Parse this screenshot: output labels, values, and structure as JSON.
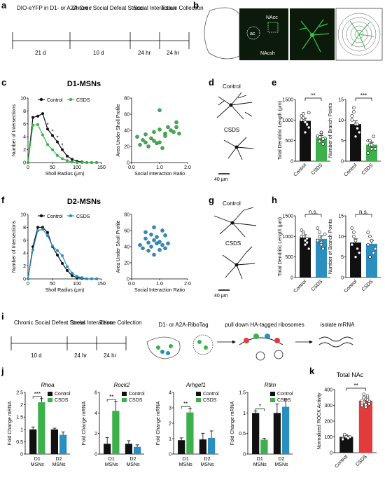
{
  "colors": {
    "control": "#111111",
    "d1": "#3cb04a",
    "d2": "#2a8fbf",
    "roc_control": "#111111",
    "roc_csds": "#e33b3b",
    "confocal_bg": "#0b1a0b",
    "neuron": "#3fc34a"
  },
  "panel_a": {
    "letter": "a",
    "steps": [
      "DIO-eYFP in D1- or A2A-Cre♂",
      "Chronic Social Defeat Stress",
      "Social Interaction",
      "Tissue Collection"
    ],
    "intervals": [
      "21 d",
      "10 d",
      "24 hr",
      "24 hr"
    ]
  },
  "panel_b": {
    "letter": "b",
    "labels": [
      "NAcc",
      "ac",
      "NAcsh"
    ]
  },
  "panel_c": {
    "letter": "c",
    "title": "D1-MSNs"
  },
  "panel_d": {
    "letter": "d",
    "labels": [
      "Control",
      "CSDS"
    ],
    "scale": "40 μm"
  },
  "panel_e": {
    "letter": "e"
  },
  "panel_f": {
    "letter": "f",
    "title": "D2-MSNs"
  },
  "panel_g": {
    "letter": "g",
    "labels": [
      "Control",
      "CSDS"
    ],
    "scale": "40 μm"
  },
  "panel_h": {
    "letter": "h"
  },
  "panel_i": {
    "letter": "i",
    "steps": [
      "Chronic Social Defeat Stress",
      "Social Interaction",
      "Tissue Collection"
    ],
    "intervals": [
      "10 d",
      "24 hr",
      "24 hr"
    ],
    "flow": [
      "D1- or A2A-RiboTag",
      "pull down HA-tagged ribosomes",
      "isolate mRNA"
    ]
  },
  "panel_j": {
    "letter": "j"
  },
  "panel_k": {
    "letter": "k",
    "title": "Total NAc"
  },
  "chart_data": [
    {
      "id": "c_sholl",
      "type": "line",
      "x": [
        0,
        10,
        20,
        30,
        40,
        50,
        60,
        70,
        80,
        90,
        100,
        110,
        120,
        130,
        140
      ],
      "series": [
        {
          "name": "Control",
          "values": [
            0,
            7,
            7.2,
            7.6,
            5.2,
            4.2,
            3.2,
            2,
            1,
            0.5,
            0.2,
            0.1,
            0,
            0,
            0
          ]
        },
        {
          "name": "CSDS",
          "values": [
            0,
            5.8,
            5.9,
            4.3,
            2.8,
            2,
            1.1,
            0.6,
            0.3,
            0.1,
            0,
            0,
            0,
            0,
            0
          ]
        }
      ],
      "legend": [
        "Control",
        "CSDS"
      ],
      "xlabel": "Sholl Radius (μm)",
      "ylabel": "Number of Intersections",
      "xlim": [
        0,
        150
      ],
      "ylim": [
        0,
        10
      ],
      "xticks": [
        0,
        50,
        100,
        150
      ],
      "yticks": [
        0,
        2,
        4,
        6,
        8,
        10
      ],
      "annotations": [
        "*",
        "*",
        "*",
        "*"
      ]
    },
    {
      "id": "c_scatter",
      "type": "scatter",
      "x": [
        0.2,
        0.3,
        0.4,
        0.5,
        0.6,
        0.7,
        0.8,
        0.8,
        0.9,
        1.0,
        1.0,
        1.1,
        1.2,
        1.2,
        1.3,
        1.4,
        1.5,
        1.6,
        1.6,
        1.7,
        0.5,
        1.0
      ],
      "y": [
        32,
        22,
        28,
        25,
        20,
        30,
        38,
        27,
        24,
        41,
        25,
        18,
        36,
        33,
        44,
        40,
        38,
        50,
        44,
        36,
        35,
        65
      ],
      "xlabel": "Social Interaction Ratio",
      "ylabel": "Area Under Sholl Profile",
      "xlim": [
        0,
        2
      ],
      "ylim": [
        0,
        80
      ],
      "xticks": [
        0,
        1.0,
        2.0
      ],
      "yticks": [
        0,
        20,
        40,
        60,
        80
      ]
    },
    {
      "id": "e_length",
      "type": "bar",
      "categories": [
        "Control",
        "CSDS"
      ],
      "values": [
        980,
        560
      ],
      "errors": [
        70,
        60
      ],
      "points": [
        [
          1100,
          1050,
          950,
          880,
          820,
          1000,
          1150,
          700,
          900,
          1180
        ],
        [
          600,
          500,
          680,
          420,
          560,
          620,
          480,
          700,
          540
        ]
      ],
      "ylabel": "Total Dendritic Length (μm)",
      "ylim": [
        0,
        1500
      ],
      "yticks": [
        0,
        500,
        1000,
        1500
      ],
      "annotations": [
        "**"
      ]
    },
    {
      "id": "e_branch",
      "type": "bar",
      "categories": [
        "Control",
        "CSDS"
      ],
      "values": [
        9,
        4
      ],
      "errors": [
        0.8,
        0.6
      ],
      "points": [
        [
          11,
          12,
          9,
          8,
          7,
          10,
          13,
          6,
          9
        ],
        [
          5,
          4,
          3,
          6,
          3,
          2,
          5,
          4
        ]
      ],
      "ylabel": "Number of Branch Points",
      "ylim": [
        0,
        15
      ],
      "yticks": [
        0,
        5,
        10,
        15
      ],
      "annotations": [
        "***"
      ]
    },
    {
      "id": "f_sholl",
      "type": "line",
      "x": [
        0,
        10,
        20,
        30,
        40,
        50,
        60,
        70,
        80,
        90,
        100,
        110,
        120,
        130,
        140
      ],
      "series": [
        {
          "name": "Control",
          "values": [
            0,
            5,
            8,
            8,
            7.2,
            5,
            3.7,
            2.4,
            1.3,
            0.5,
            0.2,
            0.1,
            0,
            0,
            0
          ]
        },
        {
          "name": "CSDS",
          "values": [
            0,
            4.5,
            7.5,
            7.7,
            6.7,
            5.1,
            4.4,
            3.6,
            1.9,
            0.9,
            0.4,
            0.2,
            0,
            0,
            0
          ]
        }
      ],
      "legend": [
        "Control",
        "CSDS"
      ],
      "xlabel": "Sholl Radius (μm)",
      "ylabel": "Number of Intersections",
      "xlim": [
        0,
        150
      ],
      "ylim": [
        0,
        10
      ],
      "xticks": [
        0,
        50,
        100,
        150
      ],
      "yticks": [
        0,
        2,
        4,
        6,
        8,
        10
      ]
    },
    {
      "id": "f_scatter",
      "type": "scatter",
      "x": [
        0.3,
        0.4,
        0.5,
        0.6,
        0.6,
        0.7,
        0.7,
        0.8,
        0.8,
        0.9,
        0.9,
        1.0,
        1.0,
        1.1,
        1.1,
        1.2,
        1.2,
        1.3,
        0.5,
        0.8
      ],
      "y": [
        42,
        38,
        50,
        45,
        35,
        55,
        40,
        48,
        30,
        52,
        44,
        46,
        36,
        60,
        42,
        54,
        38,
        44,
        58,
        64
      ],
      "xlabel": "Social Interaction Ratio",
      "ylabel": "Area Under Sholl Profile",
      "xlim": [
        0,
        2
      ],
      "ylim": [
        0,
        80
      ],
      "xticks": [
        0,
        1.0,
        2.0
      ],
      "yticks": [
        0,
        20,
        40,
        60,
        80
      ]
    },
    {
      "id": "h_length",
      "type": "bar",
      "categories": [
        "Control",
        "CSDS"
      ],
      "values": [
        970,
        940
      ],
      "errors": [
        70,
        70
      ],
      "points": [
        [
          1150,
          1100,
          900,
          850,
          700,
          1000,
          1050,
          800,
          950
        ],
        [
          1200,
          1000,
          850,
          700,
          1050,
          900,
          1100,
          800
        ]
      ],
      "ylabel": "Total Dendritic Length (μm)",
      "ylim": [
        0,
        1500
      ],
      "yticks": [
        0,
        500,
        1000,
        1500
      ],
      "annotations": [
        "n.s."
      ]
    },
    {
      "id": "h_branch",
      "type": "bar",
      "categories": [
        "Control",
        "CSDS"
      ],
      "values": [
        8.5,
        8.2
      ],
      "errors": [
        0.9,
        0.8
      ],
      "points": [
        [
          12,
          11,
          9,
          7,
          6,
          8,
          10,
          5
        ],
        [
          11,
          10,
          9,
          6,
          7,
          8,
          5,
          9
        ]
      ],
      "ylabel": "Number of Branch Points",
      "ylim": [
        0,
        15
      ],
      "yticks": [
        0,
        5,
        10,
        15
      ],
      "annotations": [
        "n.s."
      ]
    },
    {
      "id": "j_rhoa",
      "type": "bar",
      "title": "Rhoa",
      "categories": [
        "D1 MSNs",
        "D2 MSNs"
      ],
      "values": [
        [
          1.0,
          2.1
        ],
        [
          1.0,
          0.78
        ]
      ],
      "errors": [
        [
          0.1,
          0.15
        ],
        [
          0.05,
          0.12
        ]
      ],
      "legend": [
        "Control",
        "CSDS"
      ],
      "ylabel": "Fold Change mRNA",
      "ylim": [
        0,
        2.5
      ],
      "yticks": [
        0,
        0.5,
        1.0,
        1.5,
        2.0,
        2.5
      ],
      "annotations": [
        "***"
      ]
    },
    {
      "id": "j_rock2",
      "type": "bar",
      "title": "Rock2",
      "categories": [
        "D1 MSNs",
        "D2 MSNs"
      ],
      "values": [
        [
          1.0,
          4.2
        ],
        [
          1.0,
          0.7
        ]
      ],
      "errors": [
        [
          0.6,
          0.9
        ],
        [
          0.3,
          0.2
        ]
      ],
      "legend": [
        "Control",
        "CSDS"
      ],
      "ylabel": "Fold Change mRNA",
      "ylim": [
        0,
        6
      ],
      "yticks": [
        0,
        2,
        4,
        6
      ],
      "annotations": [
        "**"
      ]
    },
    {
      "id": "j_arhgef1",
      "type": "bar",
      "title": "Arhgef1",
      "categories": [
        "D1 MSNs",
        "D2 MSNs"
      ],
      "values": [
        [
          0.9,
          2.7
        ],
        [
          0.95,
          1.05
        ]
      ],
      "errors": [
        [
          0.15,
          0.25
        ],
        [
          0.4,
          0.45
        ]
      ],
      "legend": [
        "Control",
        "CSDS"
      ],
      "ylabel": "Fold Change mRNA",
      "ylim": [
        0,
        4
      ],
      "yticks": [
        0,
        1,
        2,
        3,
        4
      ],
      "annotations": [
        "**"
      ]
    },
    {
      "id": "j_rtkn",
      "type": "bar",
      "title": "Rtkn",
      "categories": [
        "D1 MSNs",
        "D2 MSNs"
      ],
      "values": [
        [
          1.0,
          0.35
        ],
        [
          1.0,
          1.15
        ]
      ],
      "errors": [
        [
          0.05,
          0.03
        ],
        [
          0.22,
          0.18
        ]
      ],
      "legend": [
        "Control",
        "CSDS"
      ],
      "ylabel": "Fold Change mRNA",
      "ylim": [
        0,
        1.5
      ],
      "yticks": [
        0,
        0.5,
        1.0,
        1.5
      ],
      "annotations": [
        "*"
      ]
    },
    {
      "id": "k_rock",
      "type": "bar",
      "categories": [
        "Control",
        "CSDS"
      ],
      "values": [
        100,
        330
      ],
      "errors": [
        8,
        15
      ],
      "points": [
        [
          90,
          105,
          110,
          95,
          100,
          85,
          115,
          100,
          92
        ],
        [
          300,
          320,
          340,
          360,
          310,
          330,
          350,
          290,
          345,
          325,
          315,
          370,
          305,
          335
        ]
      ],
      "ylabel": "Normalized ROCK Activity",
      "ylim": [
        0,
        400
      ],
      "yticks": [
        0,
        100,
        200,
        300,
        400
      ],
      "annotations": [
        "**"
      ]
    }
  ]
}
